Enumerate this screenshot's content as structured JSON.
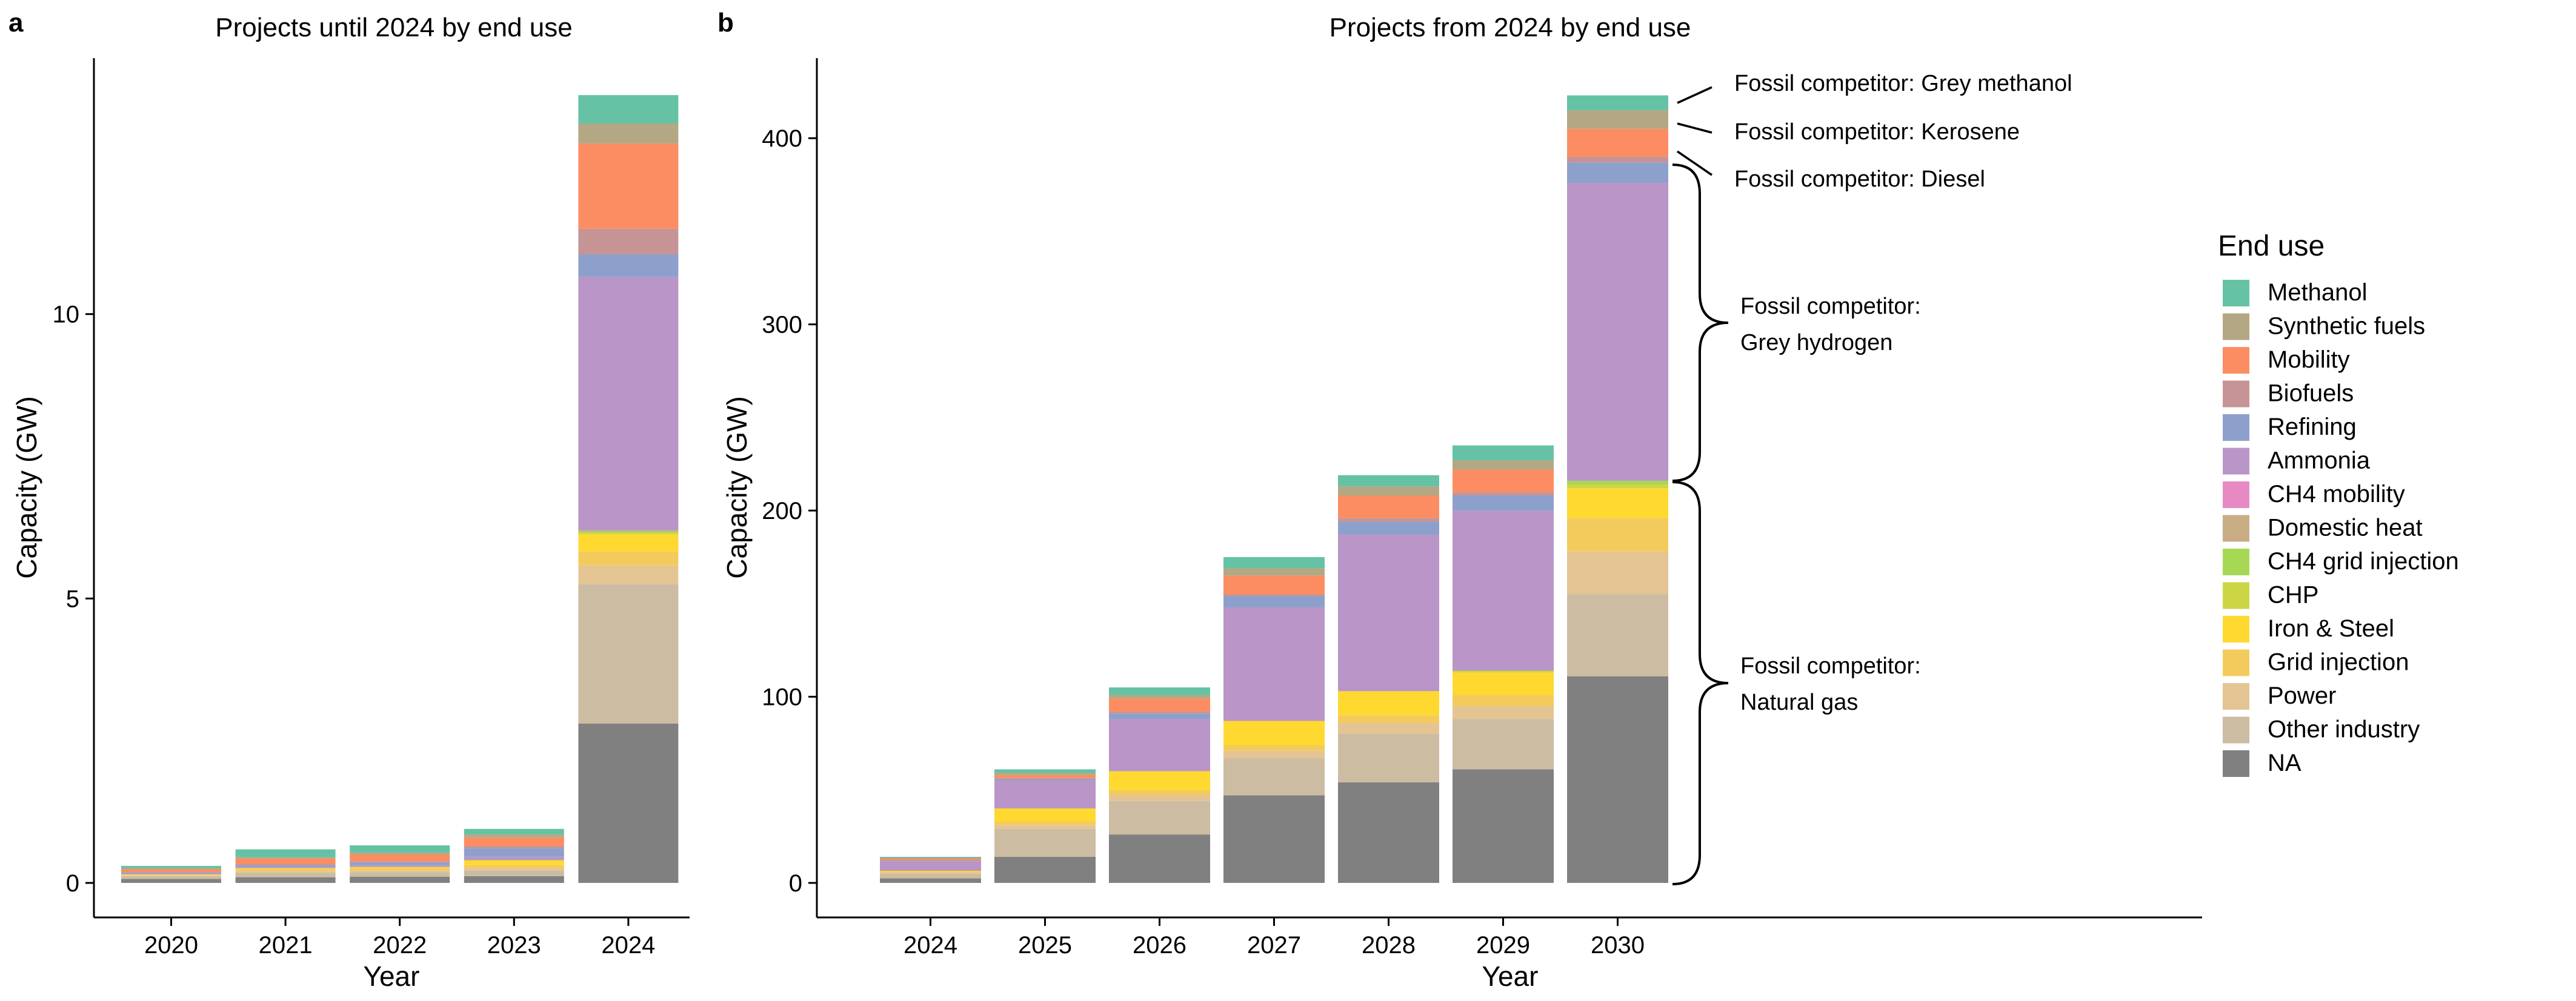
{
  "colors": {
    "Methanol": "#66c2a5",
    "Synthetic fuels": "#b3a883",
    "Mobility": "#fc8d62",
    "Biofuels": "#c69494",
    "Refining": "#8da0cb",
    "Ammonia": "#b995c8",
    "CH4 mobility": "#e78ac3",
    "Domestic heat": "#c9ad85",
    "CH4 grid injection": "#a6d854",
    "CHP": "#ccd645",
    "Iron & Steel": "#ffd92f",
    "Grid injection": "#f3cb5c",
    "Power": "#e5c494",
    "Other industry": "#ccbca2",
    "NA": "#808080"
  },
  "legend": {
    "title": "End use",
    "items": [
      "Methanol",
      "Synthetic fuels",
      "Mobility",
      "Biofuels",
      "Refining",
      "Ammonia",
      "CH4 mobility",
      "Domestic heat",
      "CH4 grid injection",
      "CHP",
      "Iron & Steel",
      "Grid injection",
      "Power",
      "Other industry",
      "NA"
    ]
  },
  "annotations": {
    "grey_methanol": "Fossil competitor: Grey methanol",
    "kerosene": "Fossil competitor: Kerosene",
    "diesel": "Fossil competitor: Diesel",
    "grey_hydrogen_1": "Fossil competitor:",
    "grey_hydrogen_2": "Grey hydrogen",
    "natural_gas_1": "Fossil competitor:",
    "natural_gas_2": "Natural gas"
  },
  "chart_data": [
    {
      "type": "bar",
      "stacked": true,
      "panel_label": "a",
      "title": "Projects until 2024 by end use",
      "xlabel": "Year",
      "ylabel": "Capacity (GW)",
      "ylim": [
        0,
        14.5
      ],
      "yticks": [
        0,
        5,
        10
      ],
      "grid": false,
      "legend_position": "right",
      "categories": [
        "2020",
        "2021",
        "2022",
        "2023",
        "2024"
      ],
      "series": [
        {
          "name": "NA",
          "values": [
            0.07,
            0.1,
            0.11,
            0.12,
            2.8
          ]
        },
        {
          "name": "Other industry",
          "values": [
            0.05,
            0.08,
            0.08,
            0.1,
            2.45
          ]
        },
        {
          "name": "Power",
          "values": [
            0.01,
            0.03,
            0.03,
            0.04,
            0.33
          ]
        },
        {
          "name": "Grid injection",
          "values": [
            0.01,
            0.03,
            0.04,
            0.05,
            0.25
          ]
        },
        {
          "name": "Iron & Steel",
          "values": [
            0.01,
            0.02,
            0.02,
            0.08,
            0.3
          ]
        },
        {
          "name": "CHP",
          "values": [
            0,
            0,
            0,
            0.01,
            0.03
          ]
        },
        {
          "name": "CH4 grid injection",
          "values": [
            0,
            0,
            0,
            0,
            0.02
          ]
        },
        {
          "name": "Domestic heat",
          "values": [
            0,
            0,
            0,
            0,
            0.02
          ]
        },
        {
          "name": "CH4 mobility",
          "values": [
            0,
            0,
            0,
            0,
            0
          ]
        },
        {
          "name": "Ammonia",
          "values": [
            0.01,
            0.02,
            0.03,
            0.06,
            4.45
          ]
        },
        {
          "name": "Refining",
          "values": [
            0.02,
            0.03,
            0.05,
            0.15,
            0.4
          ]
        },
        {
          "name": "Biofuels",
          "values": [
            0.01,
            0.02,
            0.02,
            0.04,
            0.45
          ]
        },
        {
          "name": "Mobility",
          "values": [
            0.05,
            0.1,
            0.12,
            0.15,
            1.5
          ]
        },
        {
          "name": "Synthetic fuels",
          "values": [
            0.02,
            0.02,
            0.03,
            0.05,
            0.35
          ]
        },
        {
          "name": "Methanol",
          "values": [
            0.04,
            0.14,
            0.13,
            0.1,
            0.5
          ]
        }
      ]
    },
    {
      "type": "bar",
      "stacked": true,
      "panel_label": "b",
      "title": "Projects from 2024 by end use",
      "xlabel": "Year",
      "ylabel": "Capacity (GW)",
      "ylim": [
        0,
        443
      ],
      "yticks": [
        0,
        100,
        200,
        300,
        400
      ],
      "grid": false,
      "legend_position": "right",
      "categories": [
        "2024",
        "2025",
        "2026",
        "2027",
        "2028",
        "2029",
        "2030"
      ],
      "series": [
        {
          "name": "NA",
          "values": [
            2.5,
            14,
            26,
            47,
            54,
            61,
            111
          ]
        },
        {
          "name": "Other industry",
          "values": [
            2.5,
            15,
            18,
            20,
            26,
            27,
            44
          ]
        },
        {
          "name": "Power",
          "values": [
            0.5,
            2,
            3,
            4,
            6,
            7,
            23
          ]
        },
        {
          "name": "Grid injection",
          "values": [
            0.5,
            2,
            3,
            3,
            4,
            6,
            18
          ]
        },
        {
          "name": "Iron & Steel",
          "values": [
            0.5,
            7,
            10,
            13,
            13,
            12,
            16
          ]
        },
        {
          "name": "CHP",
          "values": [
            0,
            0,
            0,
            0,
            0,
            1,
            2
          ]
        },
        {
          "name": "CH4 grid injection",
          "values": [
            0,
            0,
            0,
            0,
            0,
            0,
            2
          ]
        },
        {
          "name": "Domestic heat",
          "values": [
            0,
            0,
            0,
            0,
            0,
            0,
            0
          ]
        },
        {
          "name": "CH4 mobility",
          "values": [
            0,
            0,
            0,
            0,
            0,
            0,
            0
          ]
        },
        {
          "name": "Ammonia",
          "values": [
            5,
            15,
            28,
            61,
            84,
            86,
            160
          ]
        },
        {
          "name": "Refining",
          "values": [
            0.5,
            1,
            3,
            6,
            7,
            8,
            11
          ]
        },
        {
          "name": "Biofuels",
          "values": [
            0,
            0,
            1,
            1,
            2,
            2,
            3
          ]
        },
        {
          "name": "Mobility",
          "values": [
            1,
            2,
            7,
            10,
            12,
            12,
            15
          ]
        },
        {
          "name": "Synthetic fuels",
          "values": [
            0.5,
            1,
            2,
            4,
            5,
            5,
            10
          ]
        },
        {
          "name": "Methanol",
          "values": [
            0.5,
            2,
            4,
            6,
            6,
            8,
            8
          ]
        }
      ]
    }
  ]
}
